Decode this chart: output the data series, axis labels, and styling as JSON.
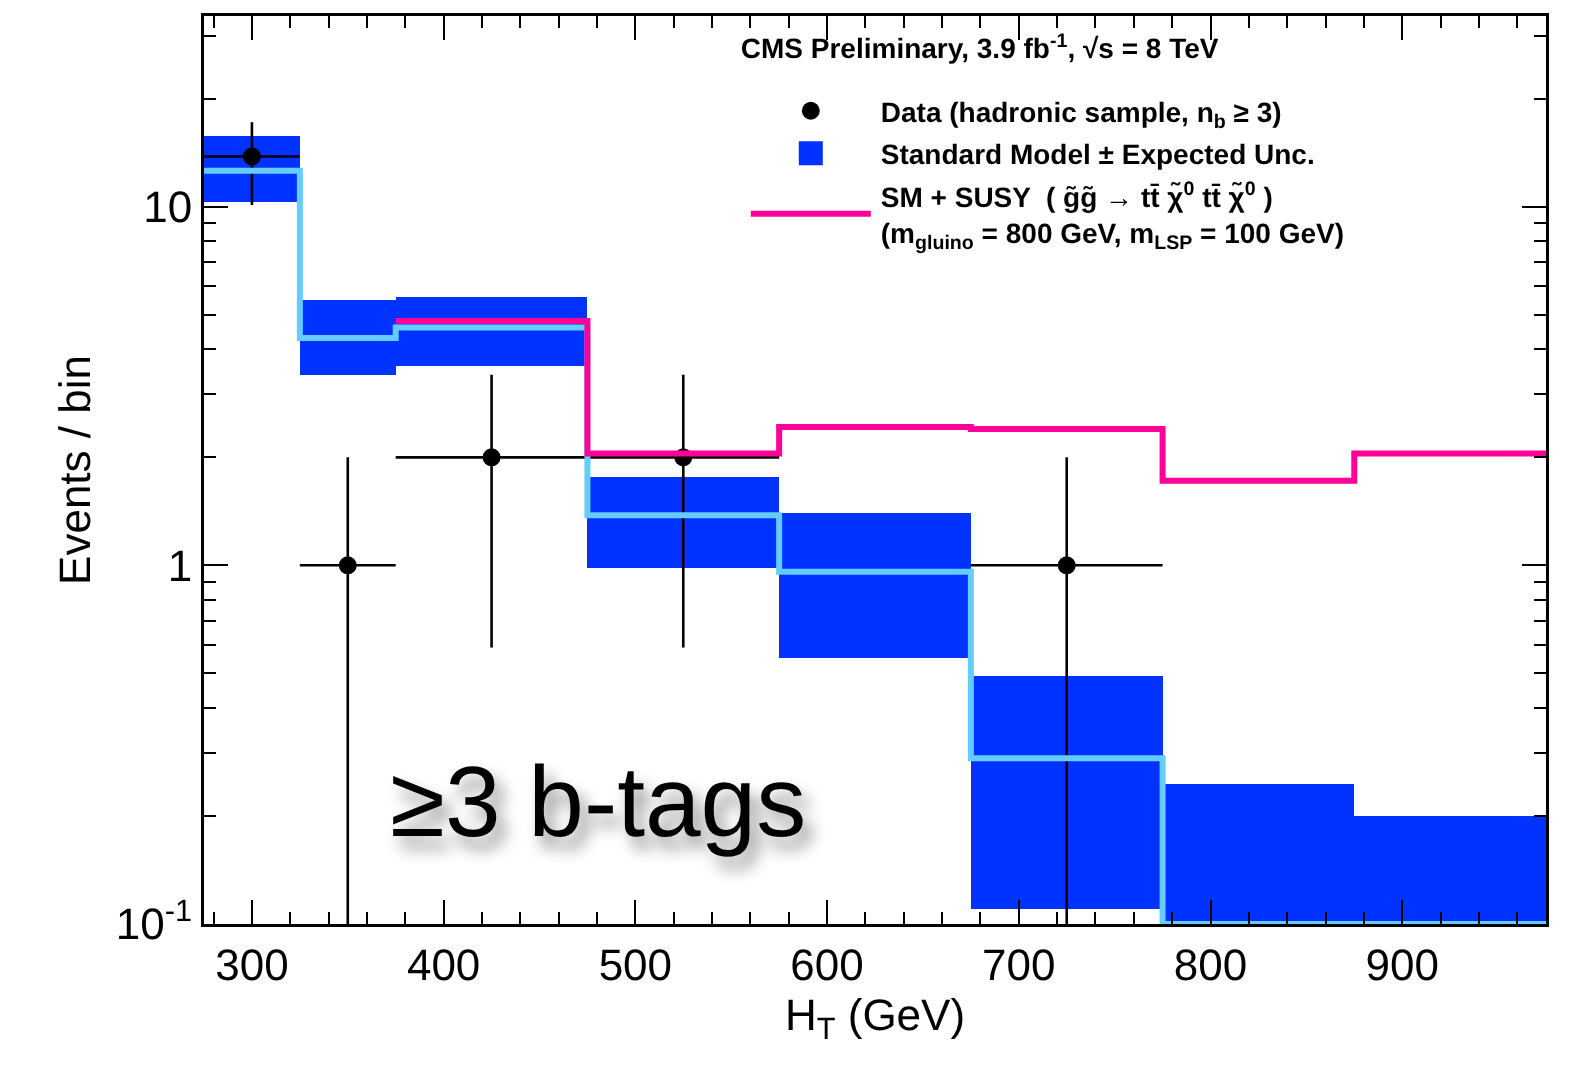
{
  "chart_data": {
    "type": "step",
    "title": "CMS Preliminary, 3.9 fb$^{-1}$, √s = 8 TeV",
    "xlabel": "H$_{T}$ (GeV)",
    "ylabel": "Events / bin",
    "annotations": [
      "≥3 b-tags"
    ],
    "xlim": [
      275,
      975
    ],
    "xticks": [
      300,
      400,
      500,
      600,
      700,
      800,
      900
    ],
    "ylim": [
      0.1,
      34
    ],
    "yticks": [
      {
        "value": 0.1,
        "label": "10$^{-1}$"
      },
      1,
      10
    ],
    "log": "y",
    "grid": false,
    "legend": "top right",
    "series": [
      {
        "name": "Data (hadronic sample, n$_{b}$ ≥ 3)",
        "type": "scatter",
        "color": "#000000",
        "marker": "circle",
        "x": [
          300,
          350,
          425,
          525,
          725
        ],
        "values": [
          13.8,
          1,
          2,
          2,
          1
        ],
        "errors": [
          [
            10.1,
            17.2
          ],
          [
            0.1,
            2.0
          ],
          [
            0.59,
            3.4
          ],
          [
            0.59,
            3.4
          ],
          [
            0.1,
            2.0
          ]
        ],
        "xerrors": [
          [
            275,
            325
          ],
          [
            325,
            375
          ],
          [
            375,
            475
          ],
          [
            475,
            575
          ],
          [
            675,
            775
          ]
        ]
      },
      {
        "name": "Standard Model ± Expected Unc.",
        "type": "bar",
        "color": "#0033ff",
        "x": [
          300,
          350,
          425,
          525,
          625,
          725,
          825,
          925
        ],
        "base": [
          10.3,
          3.4,
          3.6,
          0.98,
          0.55,
          0.11,
          0.1,
          0.1
        ],
        "values": [
          5.4,
          2.1,
          2.0,
          0.78,
          0.85,
          0.38,
          0.145,
          0.1
        ]
      },
      {
        "color": "#66ccff",
        "x": [
          275,
          325,
          375,
          475,
          575,
          675,
          775,
          875,
          975
        ],
        "values": [
          12.6,
          4.3,
          4.6,
          1.38,
          0.96,
          0.29,
          0.1,
          0.1,
          0.1
        ]
      },
      {
        "name": "SM + SUSY  ( g̃g̃ → tt̄ χ̃$^{0}$ tt̄ χ̃$^{0}$ )\n(m$_{gluino}$ = 800 GeV, m$_{LSP}$ = 100 GeV)",
        "type": "step",
        "color": "#ff0099",
        "x": [
          375,
          475,
          575,
          675,
          775,
          875,
          975
        ],
        "values": [
          4.8,
          2.05,
          2.43,
          2.4,
          1.72,
          2.05,
          2.05
        ]
      }
    ]
  }
}
